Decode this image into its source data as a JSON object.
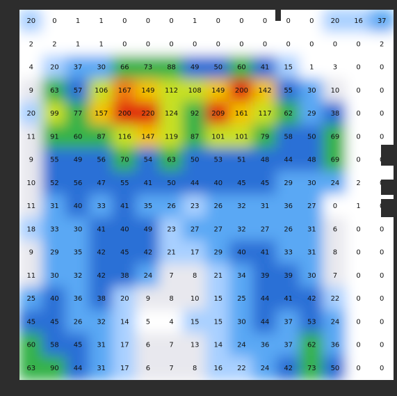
{
  "chart_data": {
    "type": "heatmap",
    "title": "",
    "xlabel": "",
    "ylabel": "",
    "colorscale": [
      "#ffffff",
      "#e8e8ee",
      "#a9d0ff",
      "#5aa8f4",
      "#2b6fd6",
      "#35b24a",
      "#c8e020",
      "#f2c200",
      "#f07a10",
      "#e02a10"
    ],
    "value_range": [
      0,
      230
    ],
    "grid": false,
    "rows": [
      [
        20,
        0,
        1,
        1,
        0,
        0,
        0,
        1,
        0,
        0,
        0,
        0,
        0,
        20,
        16,
        37
      ],
      [
        2,
        2,
        1,
        1,
        0,
        0,
        0,
        0,
        0,
        0,
        0,
        0,
        0,
        0,
        0,
        2
      ],
      [
        4,
        20,
        37,
        30,
        66,
        73,
        88,
        49,
        50,
        60,
        41,
        15,
        1,
        3,
        0,
        0
      ],
      [
        9,
        63,
        57,
        106,
        167,
        149,
        112,
        108,
        149,
        200,
        142,
        55,
        30,
        10,
        0,
        0
      ],
      [
        20,
        99,
        77,
        157,
        200,
        220,
        124,
        92,
        209,
        161,
        117,
        62,
        29,
        38,
        0,
        0
      ],
      [
        11,
        91,
        60,
        87,
        116,
        147,
        119,
        87,
        101,
        101,
        79,
        58,
        50,
        69,
        0,
        0
      ],
      [
        9,
        55,
        49,
        56,
        70,
        54,
        63,
        50,
        53,
        51,
        48,
        44,
        48,
        69,
        0,
        0
      ],
      [
        10,
        52,
        56,
        47,
        55,
        41,
        50,
        44,
        40,
        45,
        45,
        29,
        30,
        24,
        2,
        0
      ],
      [
        11,
        31,
        40,
        33,
        41,
        35,
        26,
        23,
        26,
        32,
        31,
        36,
        27,
        0,
        1,
        0
      ],
      [
        18,
        33,
        30,
        41,
        40,
        49,
        23,
        27,
        27,
        32,
        27,
        26,
        31,
        6,
        0,
        0
      ],
      [
        9,
        29,
        35,
        42,
        45,
        42,
        21,
        17,
        29,
        40,
        41,
        33,
        31,
        8,
        0,
        0
      ],
      [
        11,
        30,
        32,
        42,
        38,
        24,
        7,
        8,
        21,
        34,
        39,
        39,
        30,
        7,
        0,
        0
      ],
      [
        25,
        40,
        36,
        38,
        20,
        9,
        8,
        10,
        15,
        25,
        44,
        41,
        42,
        22,
        0,
        0
      ],
      [
        45,
        45,
        26,
        32,
        14,
        5,
        4,
        15,
        15,
        30,
        44,
        37,
        53,
        24,
        0,
        0
      ],
      [
        60,
        58,
        45,
        31,
        17,
        6,
        7,
        13,
        14,
        24,
        36,
        37,
        62,
        36,
        0,
        0
      ],
      [
        63,
        90,
        44,
        31,
        17,
        6,
        7,
        8,
        16,
        22,
        24,
        42,
        73,
        50,
        0,
        0
      ]
    ],
    "labels": [
      [
        "20",
        "0",
        "1",
        "1",
        "0",
        "0",
        "0",
        "1",
        "0",
        "0",
        "0",
        "0",
        "0",
        "20",
        "16",
        "37"
      ],
      [
        "2",
        "2",
        "1",
        "1",
        "0",
        "0",
        "0",
        "0",
        "0",
        "0",
        "0",
        "0",
        "0",
        "0",
        "0",
        "2"
      ],
      [
        "4",
        "20",
        "37",
        "30",
        "66",
        "73",
        "88",
        "49",
        "50",
        "60",
        "41",
        "15",
        "1",
        "3",
        "0",
        "0"
      ],
      [
        "9",
        "63",
        "57",
        "106",
        "167",
        "149",
        "112",
        "108",
        "149",
        "200",
        "142",
        "55",
        "30",
        "10",
        "0",
        "0"
      ],
      [
        "20",
        "99",
        "77",
        "157",
        "200",
        "220",
        "124",
        "92",
        "209",
        "161",
        "117",
        "62",
        "29",
        "38",
        "0",
        "0"
      ],
      [
        "11",
        "91",
        "60",
        "87",
        "116",
        "147",
        "119",
        "87",
        "101",
        "101",
        "79",
        "58",
        "50",
        "69",
        "0",
        "0"
      ],
      [
        "9",
        "55",
        "49",
        "56",
        "70",
        "54",
        "63",
        "50",
        "53",
        "51",
        "48",
        "44",
        "48",
        "69",
        "0",
        "0"
      ],
      [
        "10",
        "52",
        "56",
        "47",
        "55",
        "41",
        "50",
        "44",
        "40",
        "45",
        "45",
        "29",
        "30",
        "24",
        "2",
        "0"
      ],
      [
        "11",
        "31",
        "40",
        "33",
        "41",
        "35",
        "26",
        "23",
        "26",
        "32",
        "31",
        "36",
        "27",
        "0",
        "1",
        "0"
      ],
      [
        "18",
        "33",
        "30",
        "41",
        "40",
        "49",
        "23",
        "27",
        "27",
        "32",
        "27",
        "26",
        "31",
        "6",
        "0",
        "0"
      ],
      [
        "9",
        "29",
        "35",
        "42",
        "45",
        "42",
        "21",
        "17",
        "29",
        "40",
        "41",
        "33",
        "31",
        "8",
        "0",
        "0"
      ],
      [
        "11",
        "30",
        "32",
        "42",
        "38",
        "24",
        "7",
        "8",
        "21",
        "34",
        "39",
        "39",
        "30",
        "7",
        "0",
        "0"
      ],
      [
        "25",
        "40",
        "36",
        "38",
        "20",
        "9",
        "8",
        "10",
        "15",
        "25",
        "44",
        "41",
        "42",
        "22",
        "0",
        "0"
      ],
      [
        "45",
        "45",
        "26",
        "32",
        "14",
        "5",
        "4",
        "15",
        "15",
        "30",
        "44",
        "37",
        "53",
        "24",
        "0",
        "0"
      ],
      [
        "60",
        "58",
        "45",
        "31",
        "17",
        "6",
        "7",
        "13",
        "14",
        "24",
        "36",
        "37",
        "62",
        "36",
        "0",
        "0"
      ],
      [
        "63",
        "90",
        "44",
        "31",
        "17",
        "6",
        "7",
        "8",
        "16",
        "22",
        "24",
        "42",
        "73",
        "50",
        "0",
        "0"
      ]
    ]
  }
}
